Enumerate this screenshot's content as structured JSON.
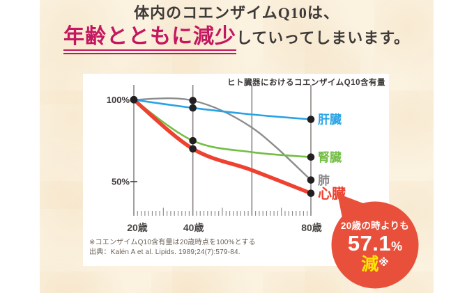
{
  "headline": {
    "line1": "体内のコエンザイムQ10は、",
    "emphasis": "年齢とともに減少",
    "line2_rest": "していってしまいます。",
    "emphasis_color": "#c4175f",
    "text_color": "#3e3a39"
  },
  "chart_data": {
    "type": "line",
    "title": "ヒト臓器におけるコエンザイムQ10含有量",
    "x": [
      20,
      40,
      60,
      80
    ],
    "x_unit": "歳",
    "x_tick_labels": [
      "20歳",
      "40歳",
      "80歳"
    ],
    "x_label_ages": [
      20,
      40,
      80
    ],
    "dot_ages": [
      20,
      40,
      80
    ],
    "y_ticks": [
      {
        "label": "100%",
        "value": 100
      },
      {
        "label": "50%",
        "value": 50
      }
    ],
    "ylim": [
      30,
      105
    ],
    "grid": "vertical-gridlines-with-ruler-ticks",
    "legend_position": "right-of-last-point",
    "series": [
      {
        "key": "lung",
        "name": "肺",
        "color": "#8c8c8c",
        "values": [
          100,
          99.5,
          83,
          51
        ],
        "stroke_width": 2.4,
        "label_size": 17
      },
      {
        "key": "liver",
        "name": "肝臓",
        "color": "#29a3e6",
        "values": [
          100,
          95,
          91,
          88
        ],
        "stroke_width": 2.6,
        "label_size": 17
      },
      {
        "key": "kidney",
        "name": "腎臓",
        "color": "#72be44",
        "values": [
          100,
          75,
          68,
          65
        ],
        "stroke_width": 2.6,
        "label_size": 17
      },
      {
        "key": "heart",
        "name": "心臓",
        "color": "#ee4130",
        "values": [
          100,
          70,
          57,
          42.9
        ],
        "stroke_width": 5.5,
        "label_size": 20
      }
    ],
    "dot_color": "#231f20",
    "grid_color": "#8a8684",
    "axis_text_color": "#3e3a39",
    "x_label_color": "#4a4644"
  },
  "footnote": {
    "line1": "※コエンザイムQ10含有量は20歳時点を100%とする",
    "line2": "出典：Kalén A et al. Lipids. 1989;24(7):579-84."
  },
  "badge": {
    "bg_color": "#e8503c",
    "line1": "20歳の時よりも",
    "value": "57.1",
    "unit": "%",
    "word": "減",
    "note_mark": "※",
    "word_color": "#ffe600",
    "text_color": "#ffffff"
  }
}
